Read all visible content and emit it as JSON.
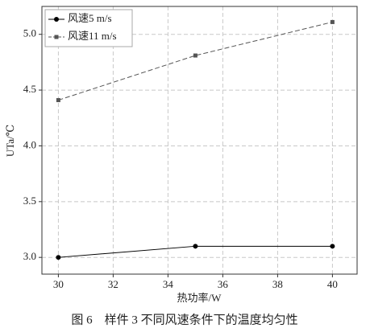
{
  "chart_data": {
    "type": "line",
    "x_label": "热功率/W",
    "y_label": "UTa/℃",
    "caption": "图 6　样件 3 不同风速条件下的温度均匀性",
    "x": [
      30,
      35,
      40
    ],
    "series": [
      {
        "name": "风速5 m/s",
        "color": "#000000",
        "marker": "circle",
        "dash": false,
        "values": [
          3.0,
          3.1,
          3.1
        ]
      },
      {
        "name": "风速11 m/s",
        "color": "#555555",
        "marker": "square",
        "dash": true,
        "values": [
          4.41,
          4.81,
          5.11
        ]
      }
    ],
    "xlim": [
      29.4,
      40.9
    ],
    "ylim": [
      2.85,
      5.25
    ],
    "xticks": [
      30,
      32,
      34,
      36,
      38,
      40
    ],
    "yticks": [
      {
        "value": 3.0,
        "label": "3.0"
      },
      {
        "value": 3.5,
        "label": "3.5"
      },
      {
        "value": 4.0,
        "label": "4.0"
      },
      {
        "value": 4.5,
        "label": "4.5"
      },
      {
        "value": 5.0,
        "label": "5.0"
      }
    ],
    "grid": true,
    "legend": "upper-left"
  }
}
